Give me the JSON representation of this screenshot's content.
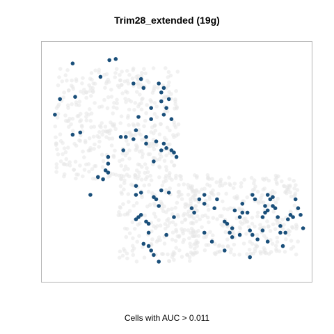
{
  "chart_data": {
    "type": "scatter",
    "title": "Trim28_extended (19g)",
    "xlabel": "Cells with AUC > 0.011",
    "ylabel": "",
    "xlim": [
      0,
      100
    ],
    "ylim": [
      0,
      100
    ],
    "grid": false,
    "axes_ticks": false,
    "colors": {
      "highlight": "#1a4f7a",
      "background": "#e6e6e6",
      "frame": "#b3b3b3"
    },
    "series": [
      {
        "role": "background",
        "regions": [
          {
            "x": [
              3,
              52
            ],
            "y": [
              42,
              92
            ],
            "count": 420
          },
          {
            "x": [
              28,
              60
            ],
            "y": [
              5,
              45
            ],
            "count": 180
          },
          {
            "x": [
              50,
              99
            ],
            "y": [
              8,
              44
            ],
            "count": 330
          }
        ]
      },
      {
        "role": "highlighted",
        "points": [
          [
            10,
            94
          ],
          [
            24.5,
            95.5
          ],
          [
            27,
            96
          ],
          [
            21,
            88
          ],
          [
            5,
            78
          ],
          [
            11,
            79
          ],
          [
            3,
            71
          ],
          [
            10,
            62
          ],
          [
            13,
            63
          ],
          [
            34,
            85
          ],
          [
            37,
            87
          ],
          [
            38,
            83
          ],
          [
            44,
            85
          ],
          [
            45,
            81
          ],
          [
            46,
            83
          ],
          [
            45,
            77
          ],
          [
            48,
            78
          ],
          [
            47,
            74
          ],
          [
            46,
            71
          ],
          [
            49,
            69
          ],
          [
            41,
            74
          ],
          [
            36,
            70
          ],
          [
            35,
            64
          ],
          [
            39,
            61
          ],
          [
            39,
            58
          ],
          [
            43,
            59
          ],
          [
            46,
            58
          ],
          [
            47,
            56
          ],
          [
            45,
            55
          ],
          [
            49,
            55
          ],
          [
            50,
            54
          ],
          [
            51,
            52
          ],
          [
            42,
            50
          ],
          [
            34,
            60
          ],
          [
            29,
            61
          ],
          [
            31,
            61
          ],
          [
            30,
            55
          ],
          [
            41,
            69
          ],
          [
            24,
            52
          ],
          [
            24,
            49
          ],
          [
            23,
            46
          ],
          [
            24,
            45
          ],
          [
            20,
            43
          ],
          [
            22,
            42
          ],
          [
            17,
            35
          ],
          [
            35,
            39
          ],
          [
            35,
            35
          ],
          [
            37,
            36
          ],
          [
            37,
            26
          ],
          [
            36,
            25
          ],
          [
            35,
            24
          ],
          [
            42,
            34
          ],
          [
            43,
            33
          ],
          [
            45,
            37
          ],
          [
            44,
            30
          ],
          [
            48,
            36
          ],
          [
            39,
            23
          ],
          [
            40,
            22
          ],
          [
            40,
            18
          ],
          [
            38,
            13
          ],
          [
            40,
            12
          ],
          [
            41,
            10
          ],
          [
            42,
            8
          ],
          [
            44,
            5
          ],
          [
            47,
            17
          ],
          [
            50,
            25
          ],
          [
            57,
            29
          ],
          [
            58,
            27
          ],
          [
            60,
            33
          ],
          [
            62,
            35
          ],
          [
            62,
            31
          ],
          [
            62,
            18
          ],
          [
            65,
            14
          ],
          [
            70,
            10
          ],
          [
            70,
            23
          ],
          [
            71,
            22
          ],
          [
            73,
            20
          ],
          [
            73,
            16
          ],
          [
            72,
            18
          ],
          [
            76,
            17
          ],
          [
            76,
            25
          ],
          [
            77,
            31
          ],
          [
            77,
            27
          ],
          [
            79,
            27
          ],
          [
            80,
            19
          ],
          [
            81,
            17
          ],
          [
            85,
            19
          ],
          [
            85,
            25
          ],
          [
            86,
            30
          ],
          [
            86,
            27
          ],
          [
            87,
            28
          ],
          [
            87,
            35
          ],
          [
            88,
            33
          ],
          [
            89,
            34
          ],
          [
            89,
            30
          ],
          [
            90,
            29
          ],
          [
            91,
            25
          ],
          [
            92,
            21
          ],
          [
            92,
            18
          ],
          [
            93,
            12
          ],
          [
            94,
            18
          ],
          [
            95,
            24
          ],
          [
            96,
            26
          ],
          [
            97,
            25
          ],
          [
            98,
            33
          ],
          [
            99,
            29
          ],
          [
            100,
            26
          ],
          [
            101,
            20
          ],
          [
            87,
            14
          ],
          [
            83,
            15
          ],
          [
            67,
            33
          ],
          [
            66,
            29
          ],
          [
            80,
            7
          ],
          [
            81,
            35
          ],
          [
            82,
            33
          ],
          [
            74,
            28
          ]
        ]
      }
    ]
  }
}
